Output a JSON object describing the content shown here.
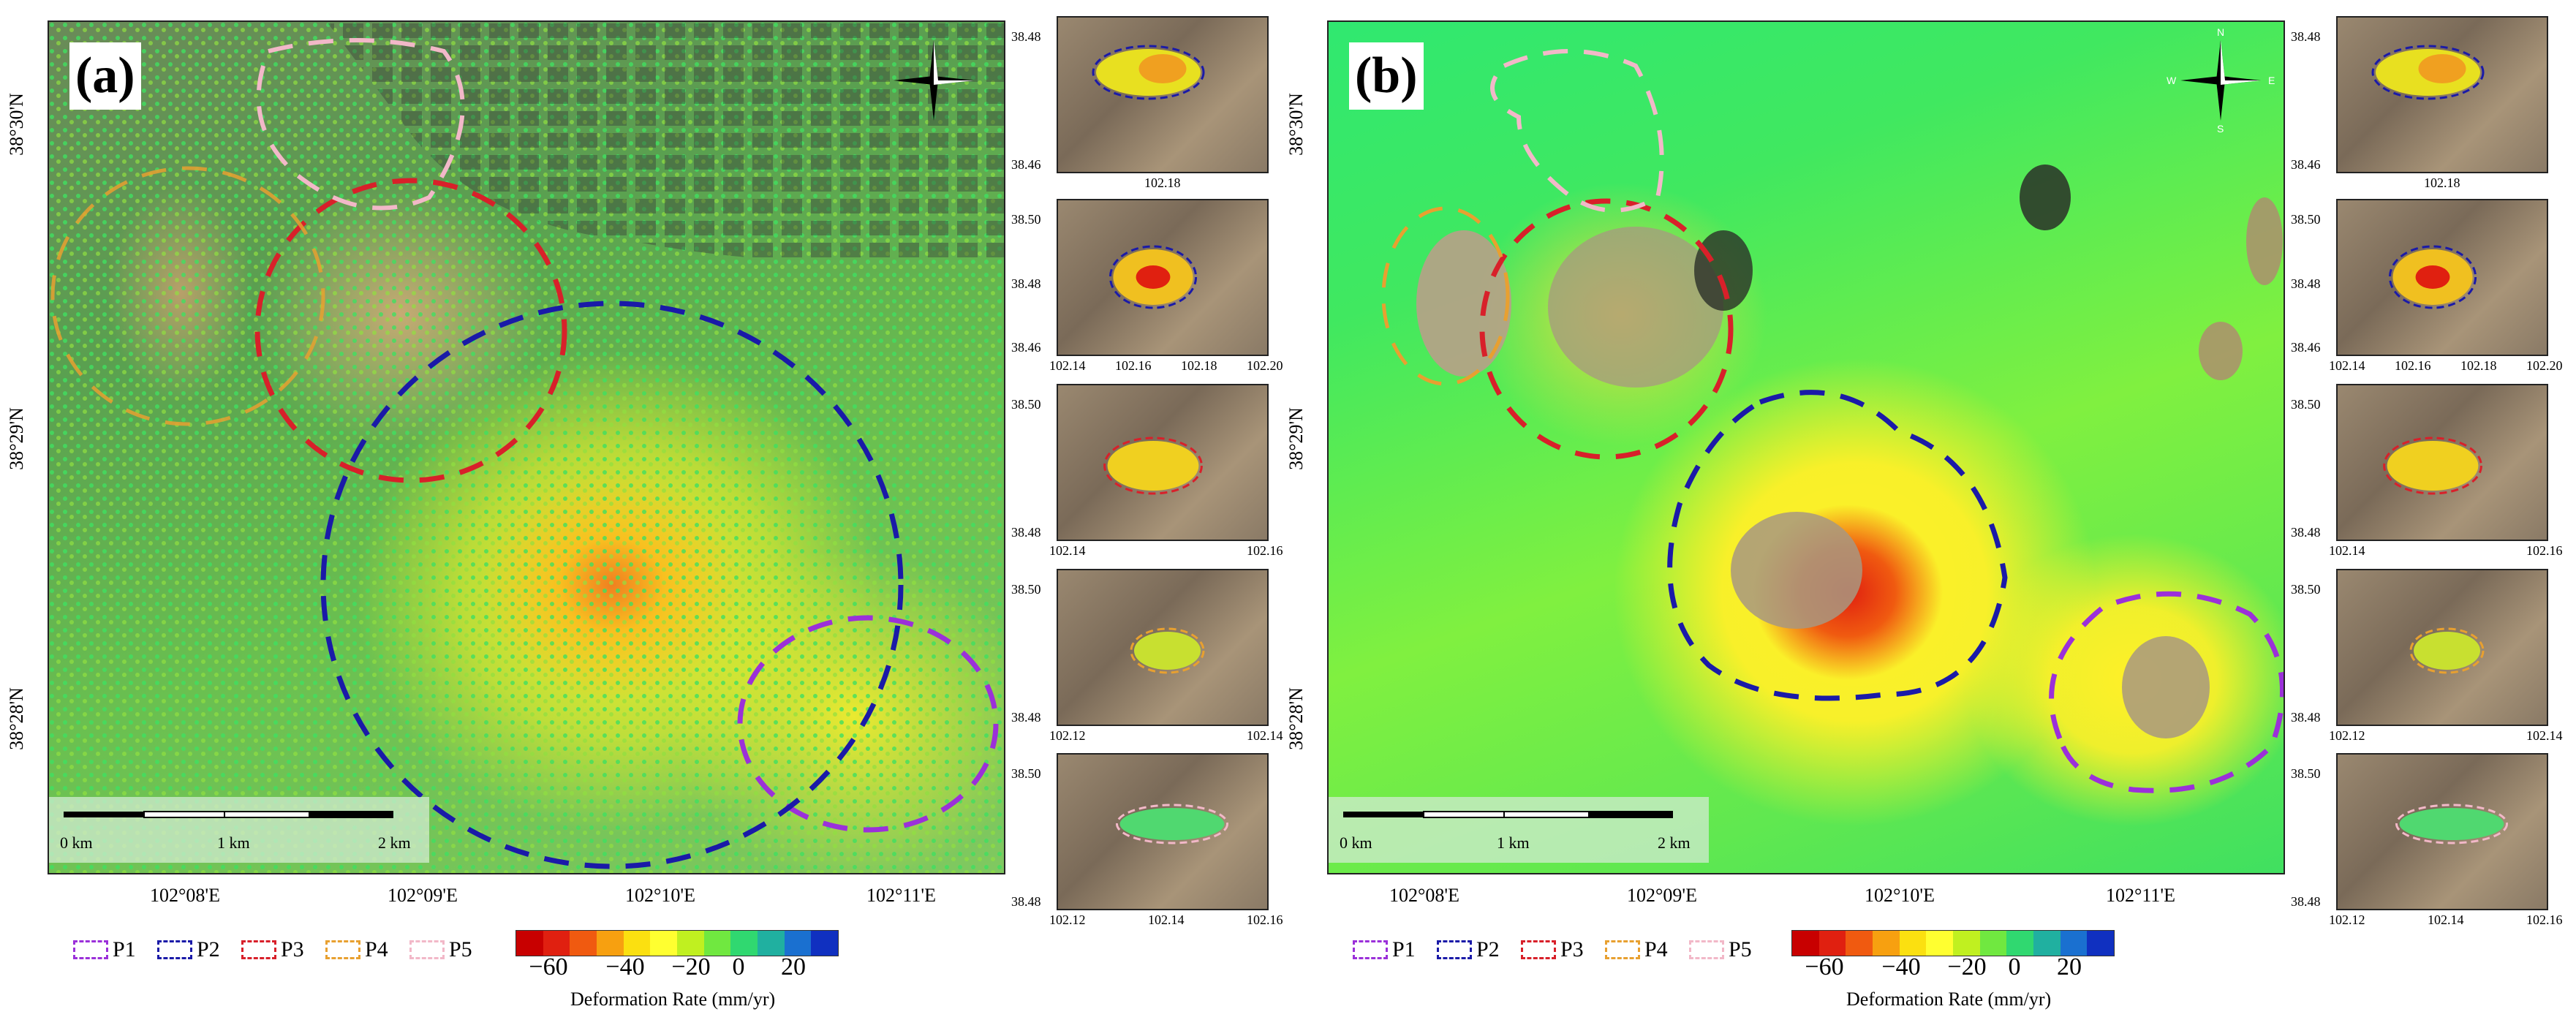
{
  "panels": [
    {
      "letter": "(a)",
      "lon_ticks": [
        "102°08'E",
        "102°09'E",
        "102°10'E",
        "102°11'E"
      ],
      "lat_ticks": [
        "38°30'N",
        "38°29'N",
        "38°28'N"
      ],
      "scale": {
        "labels": [
          "0 km",
          "1 km",
          "2 km"
        ]
      },
      "insets": [
        {
          "y_ticks": [
            "38.48",
            "38.46"
          ],
          "x_ticks": [
            "102.18"
          ]
        },
        {
          "y_ticks": [
            "38.50",
            "38.48",
            "38.46"
          ],
          "x_ticks": [
            "102.14",
            "102.16",
            "102.18",
            "102.20"
          ]
        },
        {
          "y_ticks": [
            "38.50",
            "38.48"
          ],
          "x_ticks": [
            "102.14",
            "102.16"
          ]
        },
        {
          "y_ticks": [
            "38.50",
            "38.48"
          ],
          "x_ticks": [
            "102.12",
            "102.14"
          ]
        },
        {
          "y_ticks": [
            "38.50",
            "38.48"
          ],
          "x_ticks": [
            "102.12",
            "102.14",
            "102.16"
          ]
        }
      ]
    },
    {
      "letter": "(b)",
      "lon_ticks": [
        "102°08'E",
        "102°09'E",
        "102°10'E",
        "102°11'E"
      ],
      "lat_ticks": [
        "38°30'N",
        "38°29'N",
        "38°28'N"
      ],
      "scale": {
        "labels": [
          "0 km",
          "1 km",
          "2 km"
        ]
      },
      "insets": [
        {
          "y_ticks": [
            "38.48",
            "38.46"
          ],
          "x_ticks": [
            "102.18"
          ]
        },
        {
          "y_ticks": [
            "38.50",
            "38.48",
            "38.46"
          ],
          "x_ticks": [
            "102.14",
            "102.16",
            "102.18",
            "102.20"
          ]
        },
        {
          "y_ticks": [
            "38.50",
            "38.48"
          ],
          "x_ticks": [
            "102.14",
            "102.16"
          ]
        },
        {
          "y_ticks": [
            "38.50",
            "38.48"
          ],
          "x_ticks": [
            "102.12",
            "102.14"
          ]
        },
        {
          "y_ticks": [
            "38.50",
            "38.48"
          ],
          "x_ticks": [
            "102.12",
            "102.14",
            "102.16"
          ]
        }
      ]
    }
  ],
  "compass": {
    "n": "N",
    "s": "S",
    "e": "E",
    "w": "W"
  },
  "legend": {
    "zones": [
      {
        "label": "P1",
        "color": "#9b30d9"
      },
      {
        "label": "P2",
        "color": "#1a1aa8"
      },
      {
        "label": "P3",
        "color": "#d8202a"
      },
      {
        "label": "P4",
        "color": "#e8a030"
      },
      {
        "label": "P5",
        "color": "#f2b8c8"
      }
    ]
  },
  "colorbar": {
    "title": "Deformation Rate (mm/yr)",
    "ticks": [
      "−60",
      "−40",
      "−20",
      "0",
      "20"
    ],
    "colors": [
      "#c80000",
      "#e02010",
      "#f05a10",
      "#f7a010",
      "#fbe010",
      "#ffff30",
      "#c0f020",
      "#70e840",
      "#30d870",
      "#20b0a0",
      "#1a70d0",
      "#1030c0"
    ]
  }
}
